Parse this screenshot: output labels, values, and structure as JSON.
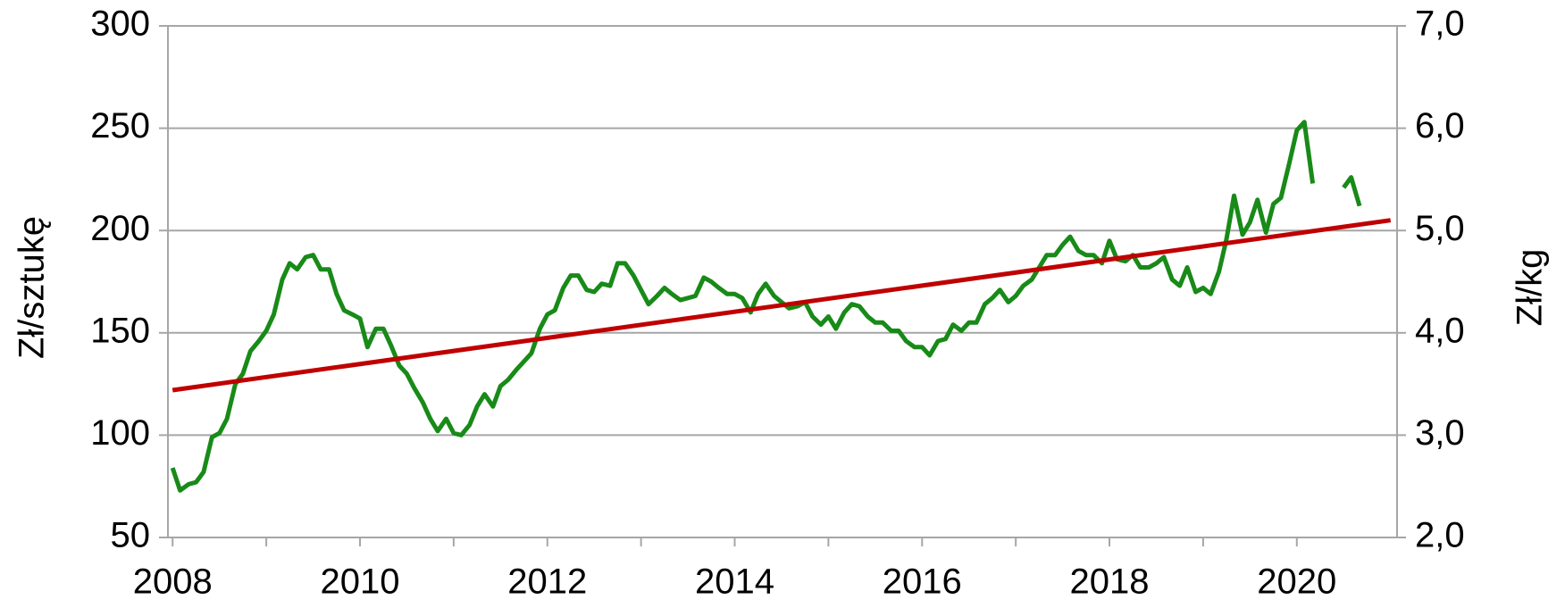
{
  "chart_data": {
    "type": "line",
    "ylabel": "Zł/sztukę",
    "y2label": "Zł/kg",
    "x": [
      2008.0,
      2008.08,
      2008.17,
      2008.25,
      2008.33,
      2008.42,
      2008.5,
      2008.58,
      2008.67,
      2008.75,
      2008.83,
      2008.92,
      2009.0,
      2009.08,
      2009.17,
      2009.25,
      2009.33,
      2009.42,
      2009.5,
      2009.58,
      2009.67,
      2009.75,
      2009.83,
      2009.92,
      2010.0,
      2010.08,
      2010.17,
      2010.25,
      2010.33,
      2010.42,
      2010.5,
      2010.58,
      2010.67,
      2010.75,
      2010.83,
      2010.92,
      2011.0,
      2011.08,
      2011.17,
      2011.25,
      2011.33,
      2011.42,
      2011.5,
      2011.58,
      2011.67,
      2011.75,
      2011.83,
      2011.92,
      2012.0,
      2012.08,
      2012.17,
      2012.25,
      2012.33,
      2012.42,
      2012.5,
      2012.58,
      2012.67,
      2012.75,
      2012.83,
      2012.92,
      2013.0,
      2013.08,
      2013.17,
      2013.25,
      2013.33,
      2013.42,
      2013.5,
      2013.58,
      2013.67,
      2013.75,
      2013.83,
      2013.92,
      2014.0,
      2014.08,
      2014.17,
      2014.25,
      2014.33,
      2014.42,
      2014.5,
      2014.58,
      2014.67,
      2014.75,
      2014.83,
      2014.92,
      2015.0,
      2015.08,
      2015.17,
      2015.25,
      2015.33,
      2015.42,
      2015.5,
      2015.58,
      2015.67,
      2015.75,
      2015.83,
      2015.92,
      2016.0,
      2016.08,
      2016.17,
      2016.25,
      2016.33,
      2016.42,
      2016.5,
      2016.58,
      2016.67,
      2016.75,
      2016.83,
      2016.92,
      2017.0,
      2017.08,
      2017.17,
      2017.25,
      2017.33,
      2017.42,
      2017.5,
      2017.58,
      2017.67,
      2017.75,
      2017.83,
      2017.92,
      2018.0,
      2018.08,
      2018.17,
      2018.25,
      2018.33,
      2018.42,
      2018.5,
      2018.58,
      2018.67,
      2018.75,
      2018.83,
      2018.92,
      2019.0,
      2019.08,
      2019.17,
      2019.25,
      2019.33,
      2019.42,
      2019.5,
      2019.58,
      2019.67,
      2019.75,
      2019.83,
      2019.92,
      2020.0,
      2020.08,
      2020.17,
      2020.33,
      2020.5,
      2020.58,
      2020.67
    ],
    "series": [
      {
        "color": "#188a18",
        "values": [
          84,
          73,
          76,
          77,
          82,
          99,
          101,
          108,
          125,
          130,
          141,
          146,
          151,
          159,
          176,
          184,
          181,
          187,
          188,
          181,
          181,
          169,
          161,
          159,
          157,
          143,
          152,
          152,
          144,
          134,
          130,
          123,
          116,
          108,
          102,
          108,
          101,
          100,
          105,
          114,
          120,
          114,
          124,
          127,
          132,
          136,
          140,
          152,
          159,
          161,
          172,
          178,
          178,
          171,
          170,
          174,
          173,
          184,
          184,
          178,
          171,
          164,
          168,
          172,
          169,
          166,
          167,
          168,
          177,
          175,
          172,
          169,
          169,
          167,
          160,
          169,
          174,
          168,
          165,
          162,
          163,
          165,
          158,
          154,
          158,
          152,
          160,
          164,
          163,
          158,
          155,
          155,
          151,
          151,
          146,
          143,
          143,
          139,
          146,
          147,
          154,
          151,
          155,
          155,
          164,
          167,
          171,
          165,
          168,
          173,
          176,
          182,
          188,
          188,
          193,
          197,
          190,
          188,
          188,
          184,
          195,
          186,
          185,
          188,
          182,
          182,
          184,
          187,
          176,
          173,
          182,
          170,
          172,
          169,
          180,
          196,
          217,
          198,
          204,
          215,
          199,
          213,
          216,
          233,
          249,
          253,
          223,
          null,
          221,
          226,
          212
        ]
      },
      {
        "color": "#c00000",
        "x": [
          2008.0,
          2021.0
        ],
        "values": [
          122,
          205
        ]
      }
    ],
    "xlim": [
      2007.95,
      2021.07
    ],
    "xticks": [
      2008,
      2010,
      2012,
      2014,
      2016,
      2018,
      2020
    ],
    "ylim": [
      50,
      300
    ],
    "yticks": [
      50,
      100,
      150,
      200,
      250,
      300
    ],
    "y2lim": [
      2,
      7
    ],
    "y2ticks": [
      {
        "value": 2,
        "label": "2,0"
      },
      {
        "value": 3,
        "label": "3,0"
      },
      {
        "value": 4,
        "label": "4,0"
      },
      {
        "value": 5,
        "label": "5,0"
      },
      {
        "value": 6,
        "label": "6,0"
      },
      {
        "value": 7,
        "label": "7,0"
      }
    ],
    "grid": true
  }
}
